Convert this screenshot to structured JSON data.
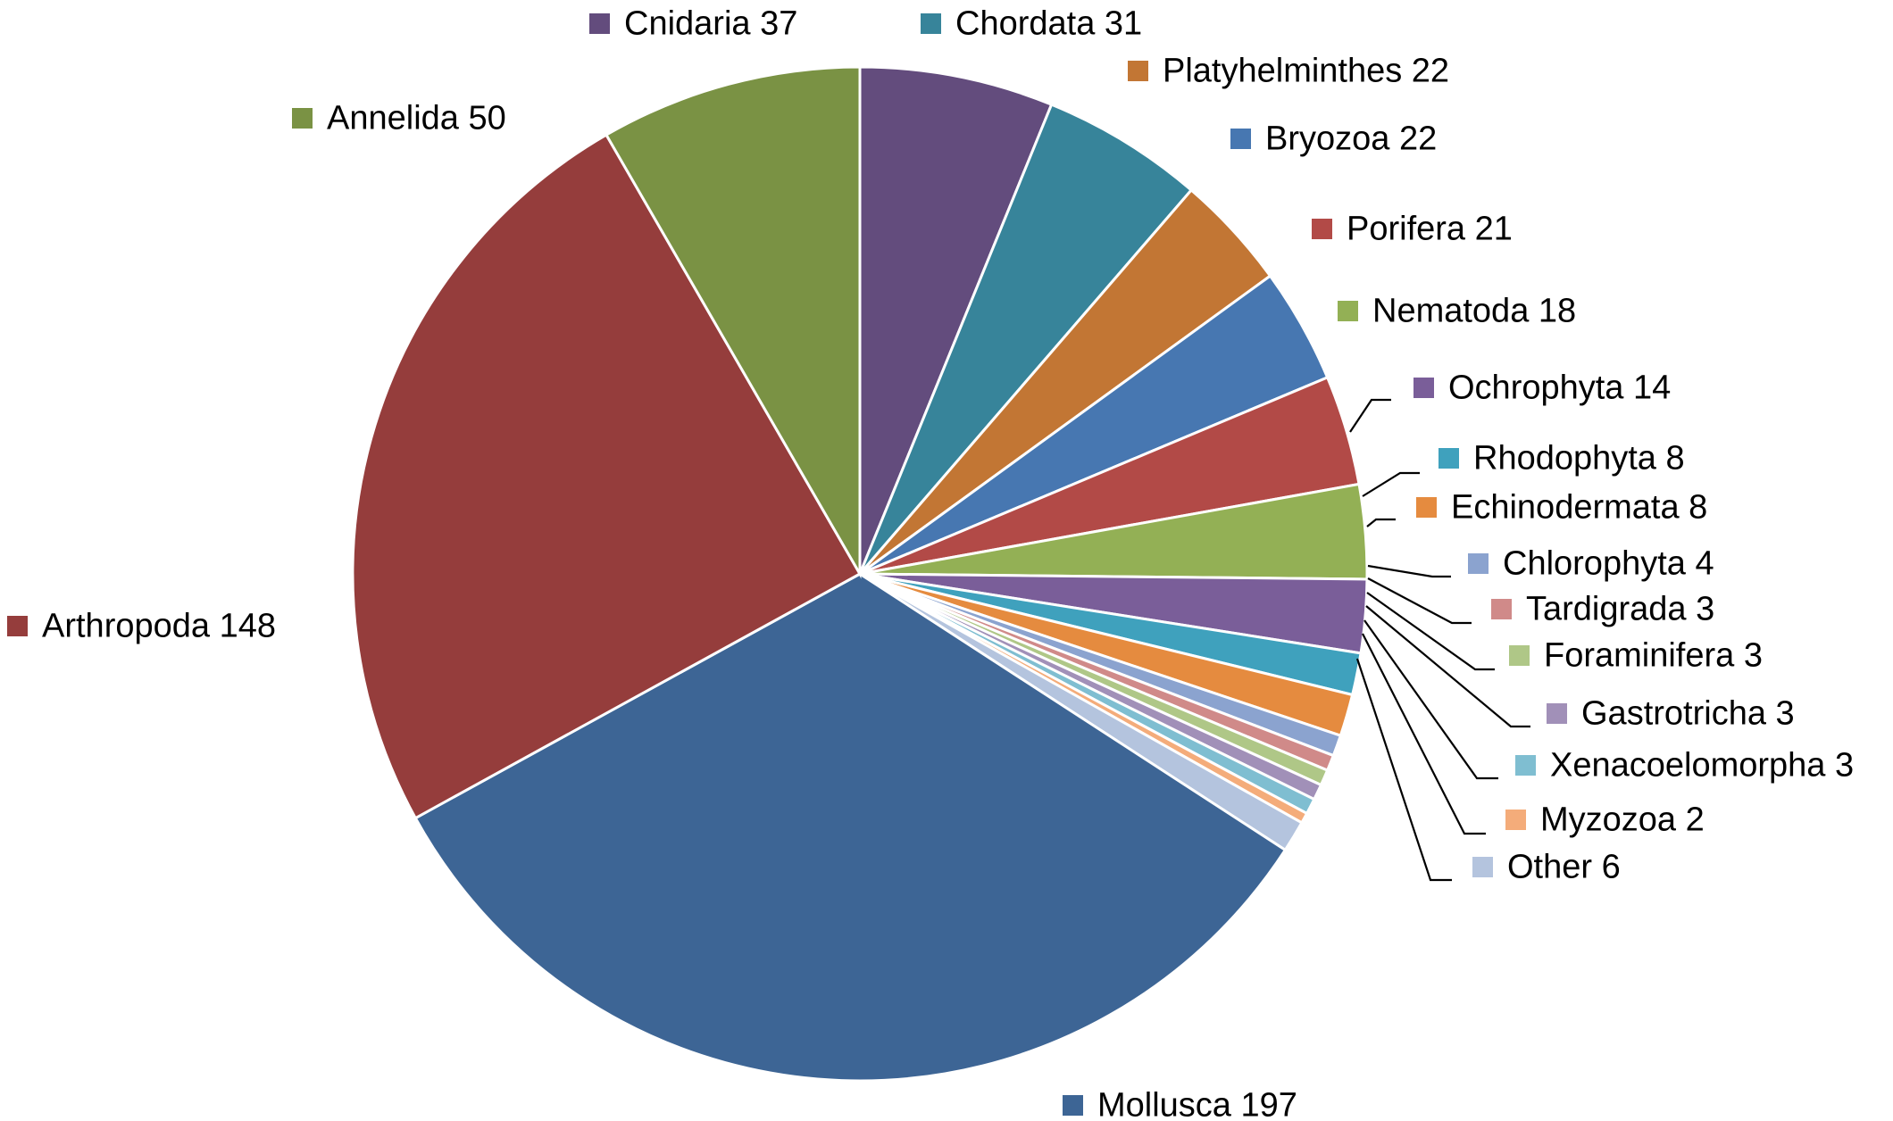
{
  "chart_data": {
    "type": "pie",
    "title": "",
    "start_angle_deg": -90,
    "direction": "clockwise",
    "legend": "none",
    "labels_show": "category name and value",
    "slices": [
      {
        "name": "Cnidaria",
        "value": 37,
        "label": "Cnidaria 37",
        "color": "#634C7D"
      },
      {
        "name": "Chordata",
        "value": 31,
        "label": "Chordata 31",
        "color": "#37849A"
      },
      {
        "name": "Platyhelminthes",
        "value": 22,
        "label": "Platyhelminthes 22",
        "color": "#C27634"
      },
      {
        "name": "Bryozoa",
        "value": 22,
        "label": "Bryozoa 22",
        "color": "#4777B1"
      },
      {
        "name": "Porifera",
        "value": 21,
        "label": "Porifera 21",
        "color": "#B24A47"
      },
      {
        "name": "Nematoda",
        "value": 18,
        "label": "Nematoda 18",
        "color": "#93B055"
      },
      {
        "name": "Ochrophyta",
        "value": 14,
        "label": "Ochrophyta 14",
        "color": "#7A5E99"
      },
      {
        "name": "Rhodophyta",
        "value": 8,
        "label": "Rhodophyta 8",
        "color": "#3FA1BD"
      },
      {
        "name": "Echinodermata",
        "value": 8,
        "label": "Echinodermata 8",
        "color": "#E58B3F"
      },
      {
        "name": "Chlorophyta",
        "value": 4,
        "label": "Chlorophyta 4",
        "color": "#8BA3CF"
      },
      {
        "name": "Tardigrada",
        "value": 3,
        "label": "Tardigrada 3",
        "color": "#D08A89"
      },
      {
        "name": "Foraminifera",
        "value": 3,
        "label": "Foraminifera 3",
        "color": "#AFC787"
      },
      {
        "name": "Gastrotricha",
        "value": 3,
        "label": "Gastrotricha 3",
        "color": "#A190B8"
      },
      {
        "name": "Xenacoelomorpha",
        "value": 3,
        "label": "Xenacoelomorpha 3",
        "color": "#7FBED1"
      },
      {
        "name": "Myzozoa",
        "value": 2,
        "label": "Myzozoa 2",
        "color": "#F4AC7A"
      },
      {
        "name": "Other",
        "value": 6,
        "label": "Other 6",
        "color": "#B4C4DE"
      },
      {
        "name": "Mollusca",
        "value": 197,
        "label": "Mollusca 197",
        "color": "#3D6595"
      },
      {
        "name": "Arthropoda",
        "value": 148,
        "label": "Arthropoda 148",
        "color": "#953D3C"
      },
      {
        "name": "Annelida",
        "value": 50,
        "label": "Annelida 50",
        "color": "#7A9244"
      }
    ]
  }
}
